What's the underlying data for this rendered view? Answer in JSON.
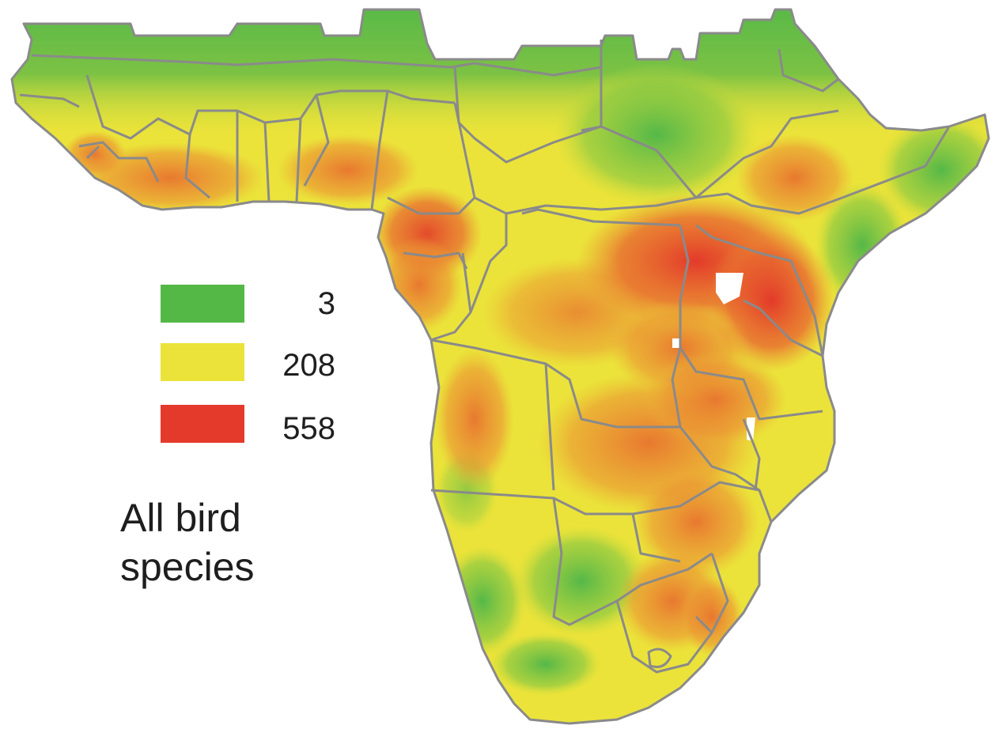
{
  "map": {
    "subject": "All bird species",
    "title_lines": [
      "All bird",
      "species"
    ],
    "legend": [
      {
        "value": "3",
        "color": "#54b847"
      },
      {
        "value": "208",
        "color": "#ebe33a"
      },
      {
        "value": "558",
        "color": "#e43a2b"
      }
    ],
    "colors": {
      "low": "#54b847",
      "mid": "#ebe33a",
      "high": "#e43a2b",
      "borders": "#8a8a8a",
      "water": "#ffffff"
    }
  }
}
